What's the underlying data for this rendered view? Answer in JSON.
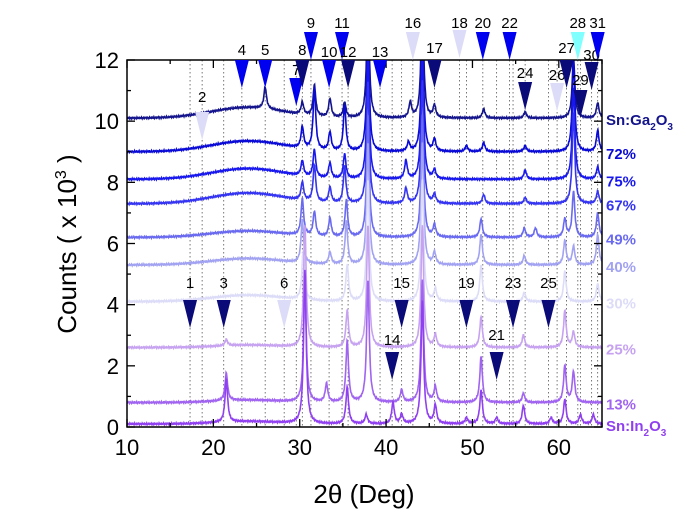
{
  "chart_data": {
    "type": "line",
    "title": "",
    "xlabel": "2θ (Deg)",
    "ylabel_main": "Counts ( x 10",
    "ylabel_sup": "3",
    "ylabel_end": " )",
    "xlim": [
      10,
      65
    ],
    "ylim": [
      0,
      12
    ],
    "xticks": [
      10,
      20,
      30,
      40,
      50,
      60
    ],
    "yticks": [
      0,
      2,
      4,
      6,
      8,
      10,
      12
    ],
    "grid": "dotted vertical reference lines at marker positions",
    "series": [
      {
        "name": "Sn:Ga2O3",
        "label_main": "Sn:Ga",
        "sub1": "2",
        "mid": "O",
        "sub2": "3",
        "color": "#14148c",
        "offset": 10.1,
        "peaks": [
          [
            26.0,
            0.7
          ],
          [
            30.3,
            0.4
          ],
          [
            31.7,
            1.0
          ],
          [
            33.5,
            0.6
          ],
          [
            35.2,
            0.5
          ],
          [
            37.9,
            4
          ],
          [
            42.8,
            0.5
          ],
          [
            44.2,
            4
          ],
          [
            45.6,
            0.4
          ],
          [
            51.3,
            0.3
          ],
          [
            56.1,
            0.2
          ],
          [
            61.7,
            2
          ],
          [
            64.5,
            0.5
          ]
        ]
      },
      {
        "name": "72%",
        "color": "#0a0ad6",
        "offset": 9.0,
        "peaks": [
          [
            30.3,
            0.7
          ],
          [
            31.7,
            2
          ],
          [
            33.5,
            0.6
          ],
          [
            35.2,
            1.5
          ],
          [
            37.9,
            4
          ],
          [
            42.6,
            0.3
          ],
          [
            44.2,
            4
          ],
          [
            45.6,
            0.4
          ],
          [
            49.3,
            0.2
          ],
          [
            51.3,
            0.3
          ],
          [
            56.1,
            0.2
          ],
          [
            61.7,
            3
          ],
          [
            64.5,
            0.7
          ]
        ]
      },
      {
        "name": "75%",
        "color": "#1818ee",
        "offset": 8.1,
        "peaks": [
          [
            30.3,
            0.5
          ],
          [
            31.7,
            0.9
          ],
          [
            33.5,
            0.5
          ],
          [
            35.2,
            0.8
          ],
          [
            37.9,
            4
          ],
          [
            42.3,
            0.6
          ],
          [
            44.2,
            4
          ],
          [
            45.6,
            0.3
          ],
          [
            56.1,
            0.3
          ],
          [
            61.7,
            3
          ],
          [
            64.5,
            0.4
          ]
        ]
      },
      {
        "name": "67%",
        "color": "#3434f2",
        "offset": 7.3,
        "peaks": [
          [
            30.3,
            0.6
          ],
          [
            31.7,
            1.2
          ],
          [
            33.5,
            0.5
          ],
          [
            35.2,
            1.2
          ],
          [
            37.9,
            4
          ],
          [
            42.3,
            0.5
          ],
          [
            44.2,
            4
          ],
          [
            45.6,
            0.3
          ],
          [
            51.3,
            0.3
          ],
          [
            56.1,
            0.2
          ],
          [
            61.7,
            3
          ],
          [
            64.5,
            0.4
          ]
        ]
      },
      {
        "name": "49%",
        "color": "#6a6af0",
        "offset": 6.2,
        "peaks": [
          [
            30.3,
            1.2
          ],
          [
            31.7,
            0.8
          ],
          [
            33.5,
            0.6
          ],
          [
            35.4,
            1.2
          ],
          [
            37.9,
            4
          ],
          [
            44.2,
            4
          ],
          [
            45.6,
            0.4
          ],
          [
            51.0,
            0.6
          ],
          [
            56.0,
            0.3
          ],
          [
            57.3,
            0.3
          ],
          [
            60.7,
            0.6
          ],
          [
            61.7,
            1.5
          ],
          [
            64.5,
            0.8
          ]
        ]
      },
      {
        "name": "40%",
        "color": "#a2a2f2",
        "offset": 5.3,
        "peaks": [
          [
            30.3,
            1.4
          ],
          [
            33.5,
            0.4
          ],
          [
            35.4,
            1.4
          ],
          [
            37.9,
            4
          ],
          [
            44.2,
            4
          ],
          [
            45.6,
            0.4
          ],
          [
            51.0,
            1.0
          ],
          [
            56.0,
            0.3
          ],
          [
            60.7,
            0.8
          ],
          [
            61.7,
            0.6
          ],
          [
            64.5,
            1.0
          ]
        ]
      },
      {
        "name": "30%",
        "color": "#dcdcf8",
        "offset": 4.1,
        "peaks": [
          [
            30.4,
            1.6
          ],
          [
            35.5,
            1.2
          ],
          [
            37.9,
            4
          ],
          [
            44.2,
            4
          ],
          [
            45.7,
            0.4
          ],
          [
            51.0,
            1.2
          ],
          [
            56.0,
            0.3
          ],
          [
            60.7,
            1.0
          ],
          [
            64.5,
            0.6
          ]
        ]
      },
      {
        "name": "25%",
        "color": "#c6a2f0",
        "offset": 2.6,
        "peaks": [
          [
            21.5,
            0.2
          ],
          [
            30.6,
            4
          ],
          [
            35.5,
            1.2
          ],
          [
            37.9,
            4
          ],
          [
            44.2,
            4
          ],
          [
            45.7,
            0.4
          ],
          [
            51.0,
            1.0
          ],
          [
            55.9,
            0.4
          ],
          [
            60.7,
            1.2
          ],
          [
            61.7,
            0.5
          ]
        ]
      },
      {
        "name": "13%",
        "color": "#a064f0",
        "offset": 0.8,
        "peaks": [
          [
            21.5,
            0.9
          ],
          [
            30.6,
            4
          ],
          [
            33.1,
            0.6
          ],
          [
            35.5,
            2
          ],
          [
            37.9,
            4
          ],
          [
            41.8,
            0.4
          ],
          [
            44.2,
            4
          ],
          [
            45.7,
            0.5
          ],
          [
            51.0,
            1.5
          ],
          [
            55.9,
            0.3
          ],
          [
            60.7,
            1.2
          ],
          [
            61.7,
            1.0
          ]
        ]
      },
      {
        "name": "Sn:In2O3",
        "label_main": "Sn:In",
        "sub1": "2",
        "mid": "O",
        "sub2": "3",
        "color": "#9040f0",
        "offset": 0.1,
        "peaks": [
          [
            21.5,
            1.4
          ],
          [
            30.6,
            5
          ],
          [
            35.5,
            1.2
          ],
          [
            37.7,
            0.3
          ],
          [
            40.8,
            0.7
          ],
          [
            41.8,
            0.3
          ],
          [
            44.2,
            4
          ],
          [
            45.7,
            0.6
          ],
          [
            49.3,
            0.2
          ],
          [
            51.0,
            1.1
          ],
          [
            52.8,
            0.2
          ],
          [
            55.9,
            0.6
          ],
          [
            59.1,
            0.2
          ],
          [
            60.7,
            0.8
          ],
          [
            62.5,
            0.3
          ],
          [
            64.0,
            0.3
          ]
        ]
      }
    ],
    "markers": [
      {
        "id": "1",
        "x": 17.3,
        "color": "#0a0a78"
      },
      {
        "id": "2",
        "x": 18.7,
        "color": "#dcdcf8"
      },
      {
        "id": "3",
        "x": 21.2,
        "color": "#0a0a78"
      },
      {
        "id": "4",
        "x": 23.3,
        "color": "#0000f0"
      },
      {
        "id": "5",
        "x": 26.0,
        "color": "#0000f0"
      },
      {
        "id": "6",
        "x": 28.2,
        "color": "#dcdcf8"
      },
      {
        "id": "7",
        "x": 29.6,
        "color": "#0000f0"
      },
      {
        "id": "8",
        "x": 30.3,
        "color": "#0a0a78"
      },
      {
        "id": "9",
        "x": 31.3,
        "color": "#0000f0"
      },
      {
        "id": "10",
        "x": 33.4,
        "color": "#0000f0"
      },
      {
        "id": "11",
        "x": 34.9,
        "color": "#0000f0"
      },
      {
        "id": "12",
        "x": 35.6,
        "color": "#0a0a78"
      },
      {
        "id": "13",
        "x": 39.3,
        "color": "#0000f0"
      },
      {
        "id": "14",
        "x": 40.7,
        "color": "#0a0a78"
      },
      {
        "id": "15",
        "x": 41.8,
        "color": "#0a0a78"
      },
      {
        "id": "16",
        "x": 43.1,
        "color": "#dcdcf8"
      },
      {
        "id": "17",
        "x": 45.6,
        "color": "#0a0a78"
      },
      {
        "id": "18",
        "x": 48.5,
        "color": "#dcdcf8"
      },
      {
        "id": "19",
        "x": 49.3,
        "color": "#0a0a78"
      },
      {
        "id": "20",
        "x": 51.2,
        "color": "#0000f0"
      },
      {
        "id": "21",
        "x": 52.8,
        "color": "#0a0a78"
      },
      {
        "id": "22",
        "x": 54.3,
        "color": "#0000f0"
      },
      {
        "id": "23",
        "x": 54.7,
        "color": "#0a0a78"
      },
      {
        "id": "24",
        "x": 56.1,
        "color": "#0a0a78"
      },
      {
        "id": "25",
        "x": 58.8,
        "color": "#0a0a78"
      },
      {
        "id": "26",
        "x": 59.8,
        "color": "#dcdcf8"
      },
      {
        "id": "27",
        "x": 60.9,
        "color": "#0a0a78"
      },
      {
        "id": "28",
        "x": 62.2,
        "color": "#80ffff"
      },
      {
        "id": "29",
        "x": 62.5,
        "color": "#0a0a78"
      },
      {
        "id": "30",
        "x": 63.8,
        "color": "#0a0a78"
      },
      {
        "id": "31",
        "x": 64.5,
        "color": "#0000f0"
      }
    ]
  }
}
